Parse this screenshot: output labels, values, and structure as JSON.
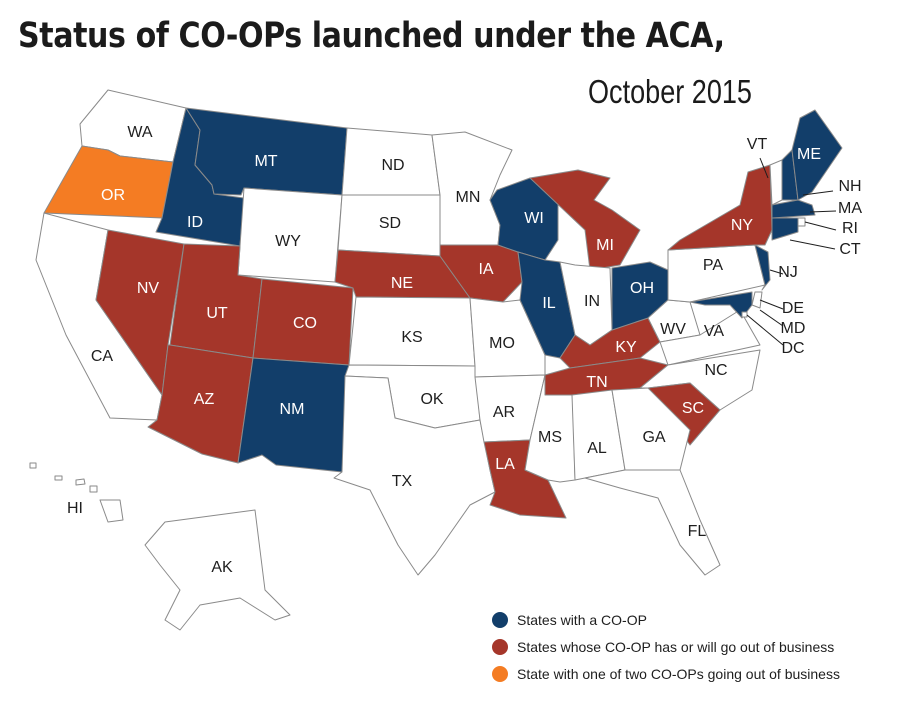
{
  "title": "Status of CO-OPs launched under the ACA,",
  "subtitle": "October 2015",
  "colors": {
    "coop": "#123e6a",
    "closed": "#a5362a",
    "partial": "#f47c23",
    "none": "#ffffff",
    "border": "#8a8a8a"
  },
  "states": [
    {
      "abbr": "WA",
      "status": "none"
    },
    {
      "abbr": "OR",
      "status": "partial"
    },
    {
      "abbr": "CA",
      "status": "none"
    },
    {
      "abbr": "NV",
      "status": "closed"
    },
    {
      "abbr": "ID",
      "status": "coop"
    },
    {
      "abbr": "MT",
      "status": "coop"
    },
    {
      "abbr": "WY",
      "status": "none"
    },
    {
      "abbr": "UT",
      "status": "closed"
    },
    {
      "abbr": "CO",
      "status": "closed"
    },
    {
      "abbr": "AZ",
      "status": "closed"
    },
    {
      "abbr": "NM",
      "status": "coop"
    },
    {
      "abbr": "ND",
      "status": "none"
    },
    {
      "abbr": "SD",
      "status": "none"
    },
    {
      "abbr": "NE",
      "status": "closed"
    },
    {
      "abbr": "KS",
      "status": "none"
    },
    {
      "abbr": "OK",
      "status": "none"
    },
    {
      "abbr": "TX",
      "status": "none"
    },
    {
      "abbr": "MN",
      "status": "none"
    },
    {
      "abbr": "IA",
      "status": "closed"
    },
    {
      "abbr": "MO",
      "status": "none"
    },
    {
      "abbr": "AR",
      "status": "none"
    },
    {
      "abbr": "LA",
      "status": "closed"
    },
    {
      "abbr": "WI",
      "status": "coop"
    },
    {
      "abbr": "IL",
      "status": "coop"
    },
    {
      "abbr": "MS",
      "status": "none"
    },
    {
      "abbr": "MI",
      "status": "closed"
    },
    {
      "abbr": "IN",
      "status": "none"
    },
    {
      "abbr": "KY",
      "status": "closed"
    },
    {
      "abbr": "TN",
      "status": "closed"
    },
    {
      "abbr": "AL",
      "status": "none"
    },
    {
      "abbr": "OH",
      "status": "coop"
    },
    {
      "abbr": "WV",
      "status": "none"
    },
    {
      "abbr": "VA",
      "status": "none"
    },
    {
      "abbr": "NC",
      "status": "none"
    },
    {
      "abbr": "SC",
      "status": "closed"
    },
    {
      "abbr": "GA",
      "status": "none"
    },
    {
      "abbr": "FL",
      "status": "none"
    },
    {
      "abbr": "PA",
      "status": "none"
    },
    {
      "abbr": "NY",
      "status": "closed"
    },
    {
      "abbr": "NJ",
      "status": "coop"
    },
    {
      "abbr": "DE",
      "status": "none"
    },
    {
      "abbr": "MD",
      "status": "coop"
    },
    {
      "abbr": "DC",
      "status": "none"
    },
    {
      "abbr": "VT",
      "status": "none"
    },
    {
      "abbr": "NH",
      "status": "coop"
    },
    {
      "abbr": "ME",
      "status": "coop"
    },
    {
      "abbr": "MA",
      "status": "coop"
    },
    {
      "abbr": "RI",
      "status": "none"
    },
    {
      "abbr": "CT",
      "status": "coop"
    },
    {
      "abbr": "AK",
      "status": "none"
    },
    {
      "abbr": "HI",
      "status": "none"
    }
  ],
  "legend": [
    {
      "label": "States with a CO-OP",
      "status": "coop"
    },
    {
      "label": "States whose CO-OP has or will go out of business",
      "status": "closed"
    },
    {
      "label": "State with one of two CO-OPs going out of business",
      "status": "partial"
    }
  ]
}
